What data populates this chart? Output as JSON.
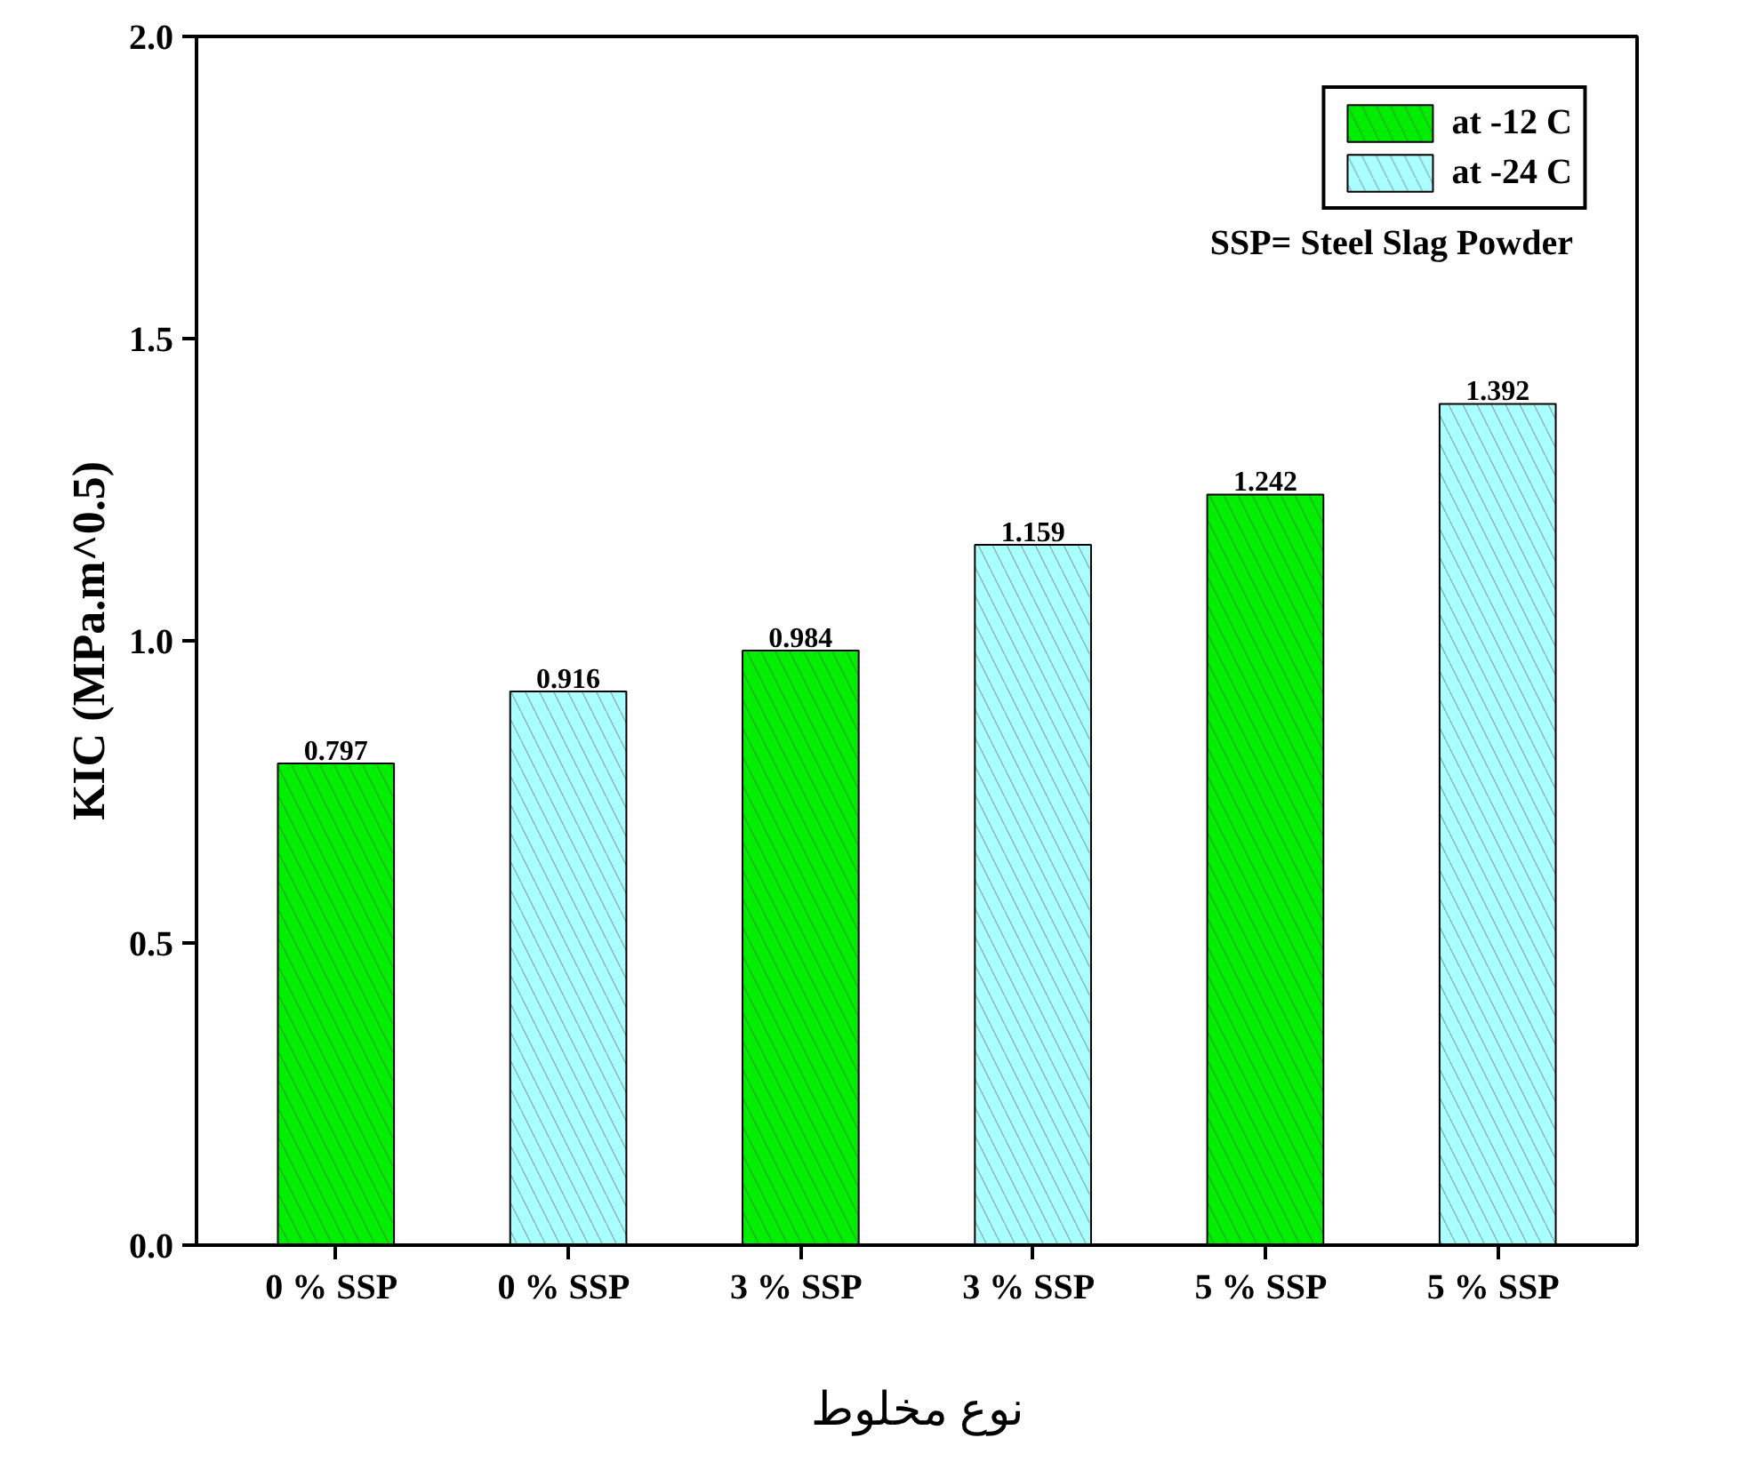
{
  "chart_data": {
    "type": "bar",
    "xlabel": "نوع مخلوط",
    "ylabel": "KIC (MPa.m^0.5)",
    "categories": [
      "0 %  SSP",
      "0 %  SSP",
      "3 %  SSP",
      "3 %  SSP",
      "5 %  SSP",
      "5 %  SSP"
    ],
    "series": [
      {
        "name": "at -12 C",
        "color": "#00ee00",
        "values": [
          0.797,
          null,
          0.984,
          null,
          1.242,
          null
        ]
      },
      {
        "name": "at -24 C",
        "color": "#aaffff",
        "values": [
          null,
          0.916,
          null,
          1.159,
          null,
          1.392
        ]
      }
    ],
    "ylim": [
      0,
      2
    ],
    "yticks": [
      {
        "value": 0,
        "label": "0.0"
      },
      {
        "value": 0.5,
        "label": "0.5"
      },
      {
        "value": 1,
        "label": "1.0"
      },
      {
        "value": 1.5,
        "label": "1.5"
      },
      {
        "value": 2,
        "label": "2.0"
      }
    ],
    "data_labels": true,
    "legend": "top right",
    "annotations": [
      "SSP= Steel Slag Powder"
    ]
  }
}
